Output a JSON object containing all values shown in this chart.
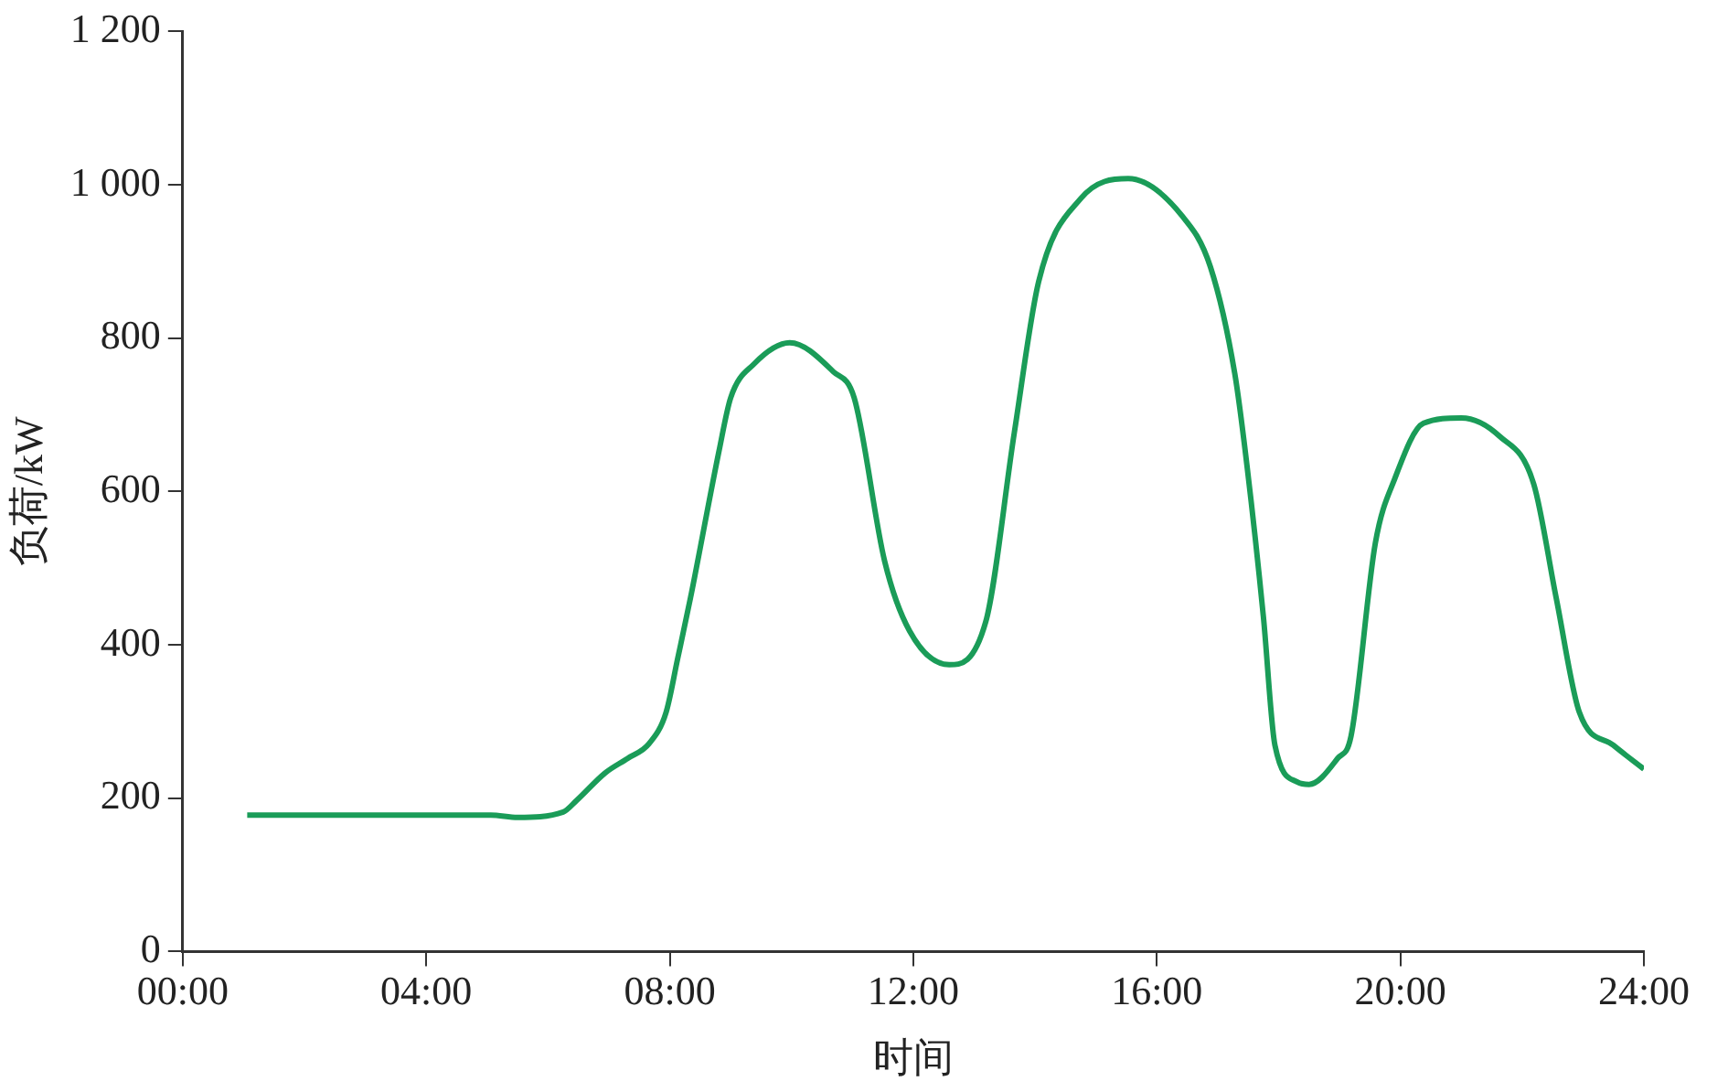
{
  "chart_data": {
    "type": "line",
    "xlabel": "时间",
    "ylabel": "负荷/kW",
    "xlim": [
      0,
      24
    ],
    "xticks": [
      {
        "value": 0,
        "label": "00:00"
      },
      {
        "value": 4,
        "label": "04:00"
      },
      {
        "value": 8,
        "label": "08:00"
      },
      {
        "value": 12,
        "label": "12:00"
      },
      {
        "value": 16,
        "label": "16:00"
      },
      {
        "value": 20,
        "label": "20:00"
      },
      {
        "value": 24,
        "label": "24:00"
      }
    ],
    "ylim": [
      0,
      1200
    ],
    "yticks": [
      0,
      200,
      400,
      600,
      800,
      {
        "value": 1000,
        "label": "1 000"
      },
      {
        "value": 1200,
        "label": "1 200"
      }
    ],
    "grid": false,
    "legend": false,
    "marker": "none",
    "line_style": "solid",
    "x": [
      1.06,
      5.06,
      5.5,
      6.25,
      6.47,
      6.94,
      7.31,
      7.66,
      7.94,
      8.13,
      8.34,
      8.81,
      9.0,
      9.38,
      9.97,
      10.69,
      11.03,
      11.53,
      11.94,
      12.59,
      13.19,
      13.66,
      14.06,
      14.75,
      15.53,
      16.41,
      16.88,
      17.28,
      17.47,
      17.75,
      17.94,
      18.31,
      18.5,
      18.97,
      19.19,
      19.59,
      19.91,
      20.38,
      21.0,
      21.63,
      22.19,
      22.56,
      22.94,
      23.5,
      24
    ],
    "series": [
      {
        "color": "#1a9c58",
        "values": [
          178,
          178,
          175,
          182,
          197,
          233,
          252,
          271,
          312,
          382,
          461,
          653,
          722,
          766,
          794,
          756,
          722,
          509,
          418,
          374,
          430,
          677,
          874,
          982,
          1008,
          960,
          893,
          754,
          641,
          437,
          269,
          221,
          218,
          252,
          281,
          533,
          617,
          689,
          696,
          672,
          610,
          461,
          312,
          269,
          238
        ]
      }
    ]
  }
}
